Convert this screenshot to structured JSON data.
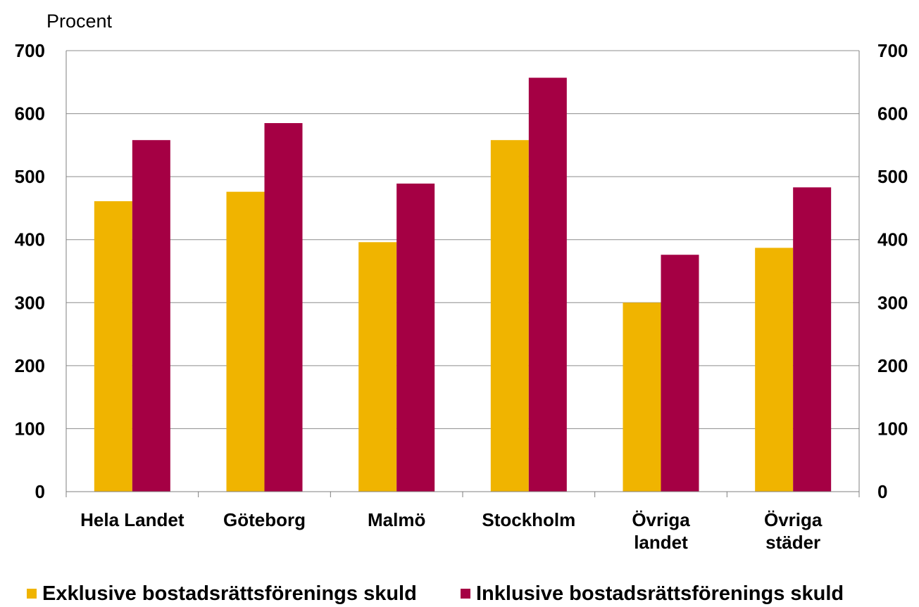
{
  "chart_data": {
    "type": "bar",
    "unit_label": "Procent",
    "categories": [
      [
        "Hela Landet"
      ],
      [
        "Göteborg"
      ],
      [
        "Malmö"
      ],
      [
        "Stockholm"
      ],
      [
        "Övriga",
        "landet"
      ],
      [
        "Övriga",
        "städer"
      ]
    ],
    "series": [
      {
        "name": "Exklusive bostadsrättsförenings skuld",
        "color": "#F0B400",
        "values": [
          461,
          476,
          396,
          558,
          300,
          387
        ]
      },
      {
        "name": "Inklusive bostadsrättsförenings skuld",
        "color": "#A50044",
        "values": [
          558,
          585,
          489,
          657,
          376,
          483
        ]
      }
    ],
    "ylim": [
      0,
      700
    ],
    "yticks": [
      0,
      100,
      200,
      300,
      400,
      500,
      600,
      700
    ],
    "secondary_axis": true,
    "grid": true,
    "legend_position": "bottom"
  }
}
